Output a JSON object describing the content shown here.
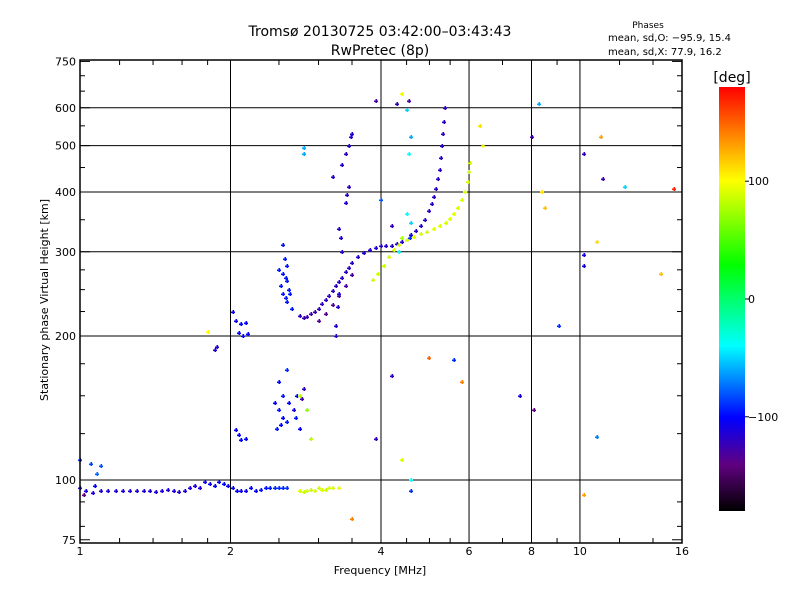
{
  "chart_data": {
    "type": "scatter",
    "title": "Tromsø 20130725 03:42:00–03:43:43",
    "subtitle": "RwPretec (8p)",
    "stats": {
      "heading": "Phases",
      "o_line": "mean, sd,O: −95.9, 15.4",
      "x_line": "mean, sd,X:  77.9, 16.2"
    },
    "xlabel": "Frequency [MHz]",
    "ylabel": "Stationary phase Virtual Height [km]",
    "xscale": "log",
    "yscale": "log",
    "xlim": [
      1,
      16
    ],
    "ylim": [
      75,
      750
    ],
    "xticks": [
      1,
      2,
      4,
      6,
      8,
      10,
      16
    ],
    "xtick_labels": [
      "1",
      "2",
      "4",
      "6",
      "8",
      "10",
      "16"
    ],
    "xgrid": [
      2,
      4,
      6,
      8,
      10
    ],
    "yticks": [
      75,
      100,
      200,
      300,
      400,
      500,
      600,
      750
    ],
    "ytick_labels": [
      "75",
      "100",
      "200",
      "300",
      "400",
      "500",
      "600",
      "750"
    ],
    "ygrid": [
      100,
      200,
      300,
      400,
      500,
      600
    ],
    "colorbar": {
      "label": "[deg]",
      "range": [
        -180,
        180
      ],
      "ticks": [
        100,
        0,
        -100
      ],
      "tick_labels": [
        "100",
        "0",
        "−100"
      ]
    },
    "point_format": [
      "frequency_MHz",
      "height_km",
      "phase_deg"
    ],
    "points": [
      [
        1.0,
        96,
        -112
      ],
      [
        1.03,
        95,
        -112
      ],
      [
        1.06,
        94,
        -112
      ],
      [
        1.1,
        95,
        -112
      ],
      [
        1.14,
        95,
        -112
      ],
      [
        1.18,
        95,
        -112
      ],
      [
        1.22,
        95,
        -112
      ],
      [
        1.26,
        95,
        -112
      ],
      [
        1.3,
        95,
        -112
      ],
      [
        1.34,
        95,
        -112
      ],
      [
        1.38,
        95,
        -112
      ],
      [
        1.42,
        94.5,
        -112
      ],
      [
        1.46,
        95,
        -112
      ],
      [
        1.5,
        95.5,
        -112
      ],
      [
        1.54,
        95,
        -112
      ],
      [
        1.58,
        94.5,
        -112
      ],
      [
        1.62,
        95,
        -112
      ],
      [
        1.66,
        96,
        -112
      ],
      [
        1.7,
        97,
        -112
      ],
      [
        1.74,
        96,
        -112
      ],
      [
        1.78,
        99,
        -105
      ],
      [
        1.82,
        98,
        -105
      ],
      [
        1.86,
        97,
        -105
      ],
      [
        1.9,
        99,
        -100
      ],
      [
        1.94,
        98,
        -100
      ],
      [
        1.98,
        97,
        -105
      ],
      [
        2.02,
        96,
        -100
      ],
      [
        2.06,
        95,
        -100
      ],
      [
        2.1,
        95,
        -105
      ],
      [
        2.15,
        95,
        -105
      ],
      [
        2.2,
        96,
        -100
      ],
      [
        2.25,
        95,
        -100
      ],
      [
        2.3,
        95.5,
        -95
      ],
      [
        2.35,
        96,
        -95
      ],
      [
        2.4,
        96,
        -95
      ],
      [
        2.45,
        96,
        -90
      ],
      [
        2.5,
        96,
        -90
      ],
      [
        2.55,
        96,
        -90
      ],
      [
        2.6,
        96,
        -88
      ],
      [
        2.75,
        95,
        88
      ],
      [
        2.8,
        94.5,
        85
      ],
      [
        2.85,
        95,
        88
      ],
      [
        2.9,
        95.5,
        85
      ],
      [
        2.95,
        95,
        90
      ],
      [
        3.0,
        96,
        88
      ],
      [
        3.05,
        95.5,
        90
      ],
      [
        3.1,
        95.5,
        85
      ],
      [
        3.15,
        96,
        92
      ],
      [
        3.2,
        96,
        90
      ],
      [
        3.3,
        96,
        95
      ],
      [
        1.0,
        110,
        -90
      ],
      [
        1.05,
        108,
        -85
      ],
      [
        1.1,
        107,
        -80
      ],
      [
        1.08,
        103,
        -75
      ],
      [
        1.02,
        93,
        -140
      ],
      [
        1.07,
        97,
        -100
      ],
      [
        2.02,
        225,
        -105
      ],
      [
        2.05,
        215,
        -105
      ],
      [
        2.1,
        212,
        -100
      ],
      [
        2.15,
        213,
        -100
      ],
      [
        2.08,
        203,
        -100
      ],
      [
        2.12,
        200,
        -100
      ],
      [
        2.17,
        202,
        -100
      ],
      [
        1.86,
        187,
        -115
      ],
      [
        1.88,
        190,
        -115
      ],
      [
        2.05,
        127,
        -100
      ],
      [
        2.1,
        121,
        -100
      ],
      [
        2.15,
        122,
        -100
      ],
      [
        2.08,
        124,
        -100
      ],
      [
        2.75,
        220,
        -120
      ],
      [
        2.8,
        218,
        -125
      ],
      [
        2.85,
        219,
        -125
      ],
      [
        2.9,
        222,
        -125
      ],
      [
        2.95,
        225,
        -125
      ],
      [
        3.0,
        228,
        -120
      ],
      [
        3.05,
        233,
        -120
      ],
      [
        3.1,
        238,
        -120
      ],
      [
        3.15,
        243,
        -120
      ],
      [
        3.2,
        248,
        -120
      ],
      [
        3.25,
        254,
        -118
      ],
      [
        3.3,
        259,
        -118
      ],
      [
        3.35,
        265,
        -118
      ],
      [
        3.4,
        272,
        -118
      ],
      [
        3.45,
        278,
        -118
      ],
      [
        3.5,
        284,
        -118
      ],
      [
        3.6,
        292,
        -115
      ],
      [
        3.7,
        298,
        -115
      ],
      [
        3.8,
        303,
        -115
      ],
      [
        3.9,
        306,
        -115
      ],
      [
        4.0,
        308,
        -115
      ],
      [
        4.1,
        308,
        -115
      ],
      [
        4.2,
        309,
        -115
      ],
      [
        4.3,
        311,
        -115
      ],
      [
        4.4,
        314,
        -115
      ],
      [
        4.5,
        318,
        -115
      ],
      [
        4.6,
        325,
        -115
      ],
      [
        4.7,
        332,
        -115
      ],
      [
        4.8,
        340,
        -115
      ],
      [
        4.9,
        350,
        -115
      ],
      [
        5.0,
        365,
        -118
      ],
      [
        5.05,
        378,
        -118
      ],
      [
        5.1,
        390,
        -118
      ],
      [
        5.15,
        405,
        -118
      ],
      [
        5.2,
        425,
        -118
      ],
      [
        5.25,
        445,
        -118
      ],
      [
        5.28,
        470,
        -118
      ],
      [
        5.3,
        500,
        -118
      ],
      [
        5.33,
        530,
        -118
      ],
      [
        5.35,
        560,
        -118
      ],
      [
        5.38,
        600,
        -118
      ],
      [
        3.0,
        215,
        -135
      ],
      [
        3.1,
        222,
        -135
      ],
      [
        3.2,
        232,
        -135
      ],
      [
        3.3,
        242,
        -135
      ],
      [
        3.4,
        255,
        -130
      ],
      [
        3.5,
        268,
        -130
      ],
      [
        3.85,
        262,
        88
      ],
      [
        3.95,
        270,
        85
      ],
      [
        4.05,
        280,
        85
      ],
      [
        4.15,
        292,
        88
      ],
      [
        4.25,
        303,
        90
      ],
      [
        4.35,
        310,
        90
      ],
      [
        4.5,
        318,
        90
      ],
      [
        4.65,
        322,
        92
      ],
      [
        4.8,
        326,
        88
      ],
      [
        4.95,
        330,
        90
      ],
      [
        5.1,
        335,
        92
      ],
      [
        5.25,
        340,
        90
      ],
      [
        5.4,
        345,
        88
      ],
      [
        5.5,
        352,
        90
      ],
      [
        5.6,
        360,
        92
      ],
      [
        5.7,
        370,
        90
      ],
      [
        5.8,
        385,
        88
      ],
      [
        5.9,
        400,
        90
      ],
      [
        5.97,
        420,
        88
      ],
      [
        6.0,
        440,
        85
      ],
      [
        6.02,
        460,
        88
      ],
      [
        4.4,
        320,
        75
      ],
      [
        2.55,
        310,
        -95
      ],
      [
        2.57,
        290,
        -95
      ],
      [
        2.6,
        280,
        -95
      ],
      [
        2.55,
        270,
        -95
      ],
      [
        2.6,
        260,
        -95
      ],
      [
        2.62,
        250,
        -95
      ],
      [
        2.58,
        240,
        -95
      ],
      [
        2.6,
        235,
        -95
      ],
      [
        2.65,
        228,
        -95
      ],
      [
        2.63,
        245,
        -95
      ],
      [
        2.58,
        265,
        -95
      ],
      [
        2.5,
        275,
        -95
      ],
      [
        2.52,
        255,
        -95
      ],
      [
        2.55,
        245,
        -95
      ],
      [
        2.5,
        160,
        -100
      ],
      [
        2.55,
        150,
        -95
      ],
      [
        2.45,
        145,
        -100
      ],
      [
        2.5,
        140,
        -95
      ],
      [
        2.55,
        135,
        -100
      ],
      [
        2.6,
        132,
        -95
      ],
      [
        2.52,
        130,
        -100
      ],
      [
        2.48,
        128,
        -95
      ],
      [
        2.62,
        145,
        -100
      ],
      [
        2.68,
        140,
        -110
      ],
      [
        2.72,
        150,
        -100
      ],
      [
        2.78,
        148,
        -125
      ],
      [
        2.7,
        135,
        -95
      ],
      [
        2.75,
        128,
        -100
      ],
      [
        2.8,
        155,
        -120
      ],
      [
        2.6,
        170,
        -90
      ],
      [
        2.75,
        150,
        80
      ],
      [
        2.85,
        140,
        70
      ],
      [
        2.9,
        122,
        80
      ],
      [
        3.25,
        200,
        -115
      ],
      [
        3.25,
        210,
        -115
      ],
      [
        3.28,
        230,
        -115
      ],
      [
        3.3,
        245,
        -110
      ],
      [
        3.35,
        300,
        -115
      ],
      [
        3.32,
        320,
        -115
      ],
      [
        3.3,
        335,
        -115
      ],
      [
        3.4,
        380,
        -115
      ],
      [
        3.42,
        395,
        -115
      ],
      [
        3.45,
        410,
        -120
      ],
      [
        3.4,
        480,
        -120
      ],
      [
        3.45,
        500,
        -115
      ],
      [
        3.48,
        520,
        -115
      ],
      [
        3.5,
        530,
        -115
      ],
      [
        3.35,
        455,
        -115
      ],
      [
        3.2,
        430,
        -115
      ],
      [
        4.55,
        620,
        -130
      ],
      [
        4.4,
        640,
        95
      ],
      [
        4.3,
        610,
        -120
      ],
      [
        4.5,
        595,
        -50
      ],
      [
        4.55,
        480,
        -40
      ],
      [
        4.5,
        360,
        -40
      ],
      [
        4.6,
        520,
        -60
      ],
      [
        6.3,
        550,
        110
      ],
      [
        6.4,
        500,
        100
      ],
      [
        8.0,
        520,
        -125
      ],
      [
        8.3,
        610,
        -60
      ],
      [
        8.4,
        400,
        110
      ],
      [
        8.5,
        370,
        120
      ],
      [
        10.2,
        480,
        -120
      ],
      [
        11.1,
        425,
        -125
      ],
      [
        12.3,
        410,
        -50
      ],
      [
        10.2,
        295,
        -110
      ],
      [
        10.2,
        280,
        -110
      ],
      [
        15.4,
        405,
        170
      ],
      [
        11.0,
        520,
        130
      ],
      [
        14.5,
        270,
        120
      ],
      [
        10.8,
        315,
        110
      ],
      [
        9.1,
        210,
        -90
      ],
      [
        7.6,
        150,
        -110
      ],
      [
        8.1,
        140,
        -140
      ],
      [
        10.8,
        123,
        -70
      ],
      [
        10.2,
        93,
        130
      ],
      [
        5.0,
        180,
        150
      ],
      [
        5.6,
        178,
        -90
      ],
      [
        5.8,
        160,
        140
      ],
      [
        4.4,
        110,
        90
      ],
      [
        4.6,
        100,
        -40
      ],
      [
        4.6,
        95,
        -90
      ],
      [
        3.9,
        122,
        -120
      ],
      [
        3.5,
        83,
        140
      ],
      [
        4.35,
        300,
        -40
      ],
      [
        4.0,
        385,
        -80
      ],
      [
        4.2,
        165,
        -120
      ],
      [
        4.6,
        345,
        -50
      ],
      [
        4.58,
        320,
        -90
      ],
      [
        1.8,
        204,
        100
      ],
      [
        2.8,
        495,
        -60
      ],
      [
        2.8,
        480,
        -60
      ],
      [
        3.9,
        620,
        -130
      ],
      [
        4.2,
        340,
        -120
      ]
    ]
  }
}
